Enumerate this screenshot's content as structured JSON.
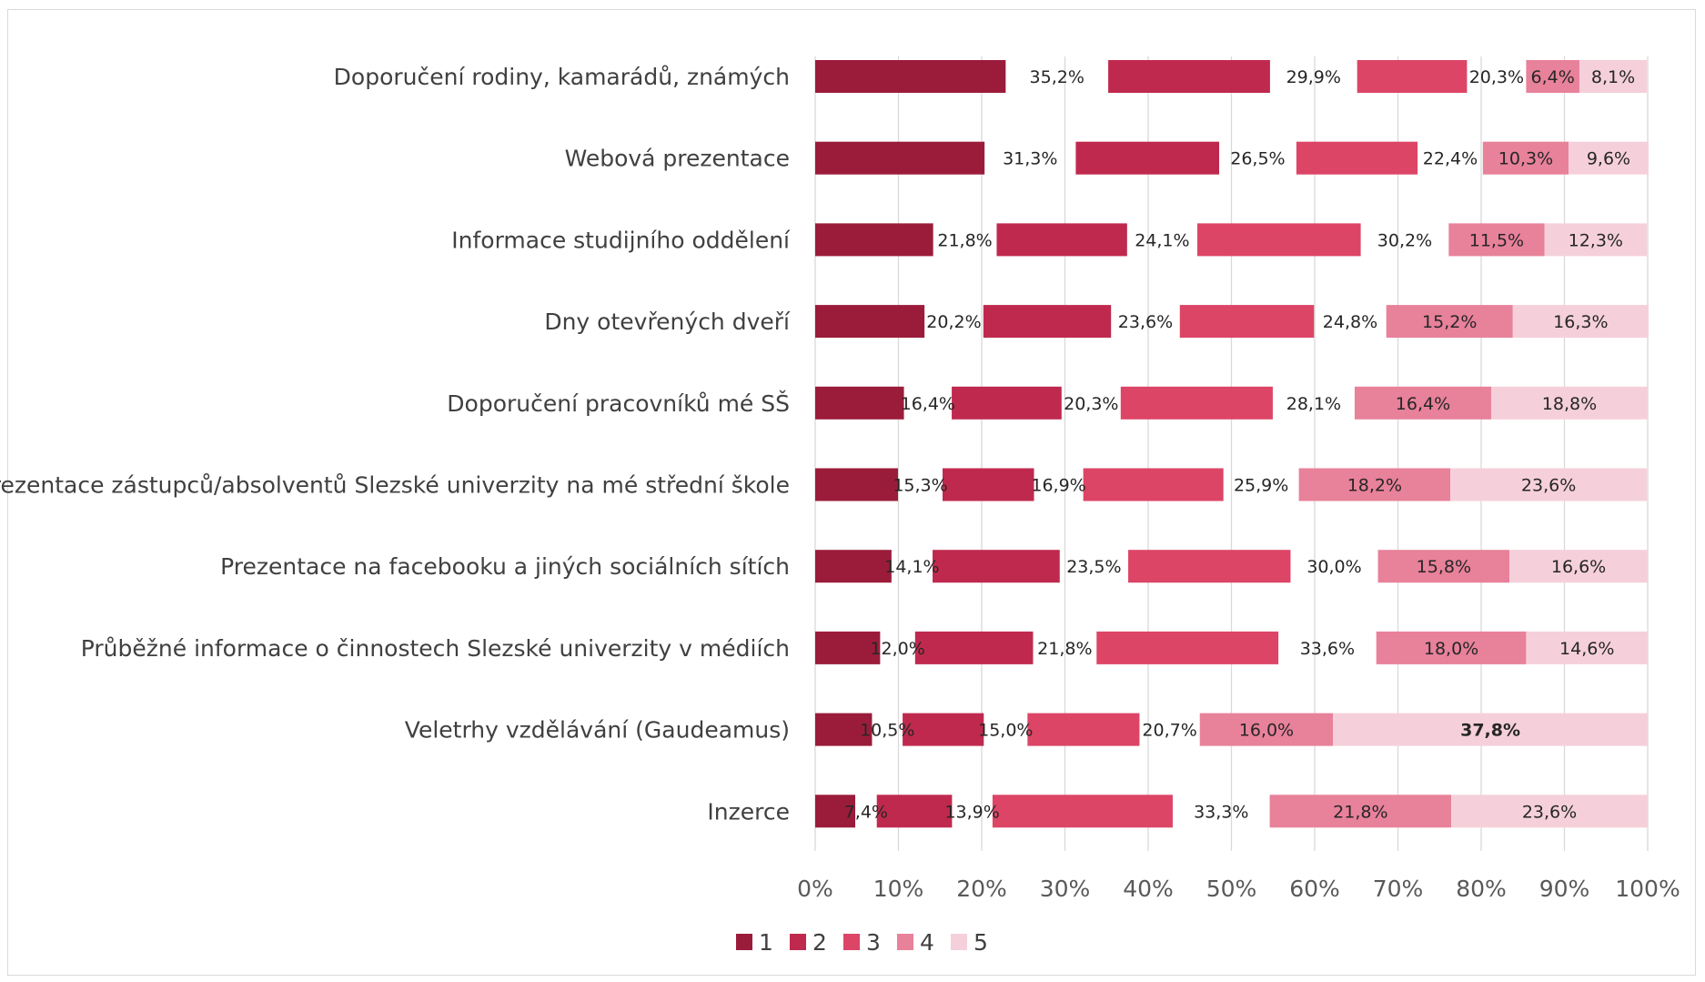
{
  "chart_data": {
    "type": "bar",
    "orientation": "horizontal",
    "stacked": true,
    "percent_stacked": true,
    "categories": [
      "Doporučení rodiny, kamarádů, známých",
      "Webová prezentace",
      "Informace studijního oddělení",
      "Dny otevřených dveří",
      "Doporučení pracovníků mé SŠ",
      "Prezentace zástupců/absolventů Slezské univerzity na mé střední škole",
      "Prezentace na facebooku a jiných sociálních sítích",
      "Průběžné informace o činnostech Slezské univerzity v médiích",
      "Veletrhy vzdělávání (Gaudeamus)",
      "Inzerce"
    ],
    "series": [
      {
        "name": "1",
        "color": "#9b1c3a",
        "values": [
          35.2,
          31.3,
          21.8,
          20.2,
          16.4,
          15.3,
          14.1,
          12.0,
          10.5,
          7.4
        ],
        "labels": [
          "35,2%",
          "31,3%",
          "21,8%",
          "20,2%",
          "16,4%",
          "15,3%",
          "14,1%",
          "12,0%",
          "10,5%",
          "7,4%"
        ]
      },
      {
        "name": "2",
        "color": "#c0294e",
        "values": [
          29.9,
          26.5,
          24.1,
          23.6,
          20.3,
          16.9,
          23.5,
          21.8,
          15.0,
          13.9
        ],
        "labels": [
          "29,9%",
          "26,5%",
          "24,1%",
          "23,6%",
          "20,3%",
          "16,9%",
          "23,5%",
          "21,8%",
          "15,0%",
          "13,9%"
        ]
      },
      {
        "name": "3",
        "color": "#dc4566",
        "values": [
          20.3,
          22.4,
          30.2,
          24.8,
          28.1,
          25.9,
          30.0,
          33.6,
          20.7,
          33.3
        ],
        "labels": [
          "20,3%",
          "22,4%",
          "30,2%",
          "24,8%",
          "28,1%",
          "25,9%",
          "30,0%",
          "33,6%",
          "20,7%",
          "33,3%"
        ]
      },
      {
        "name": "4",
        "color": "#e8819a",
        "values": [
          6.4,
          10.3,
          11.5,
          15.2,
          16.4,
          18.2,
          15.8,
          18.0,
          16.0,
          21.8
        ],
        "labels": [
          "6,4%",
          "10,3%",
          "11,5%",
          "15,2%",
          "16,4%",
          "18,2%",
          "15,8%",
          "18,0%",
          "16,0%",
          "21,8%"
        ]
      },
      {
        "name": "5",
        "color": "#f5d0da",
        "values": [
          8.1,
          9.6,
          12.3,
          16.3,
          18.8,
          23.6,
          16.6,
          14.6,
          37.8,
          23.6
        ],
        "labels": [
          "8,1%",
          "9,6%",
          "12,3%",
          "16,3%",
          "18,8%",
          "23,6%",
          "16,6%",
          "14,6%",
          "37,8%",
          "23,6%"
        ]
      }
    ],
    "bold_labels": [
      {
        "category_index": 8,
        "series_index": 4
      }
    ],
    "x_ticks": [
      "0%",
      "10%",
      "20%",
      "30%",
      "40%",
      "50%",
      "60%",
      "70%",
      "80%",
      "90%",
      "100%"
    ],
    "xlim": [
      0,
      100
    ],
    "grid": true,
    "legend_position": "bottom",
    "title": "",
    "xlabel": "",
    "ylabel": ""
  }
}
